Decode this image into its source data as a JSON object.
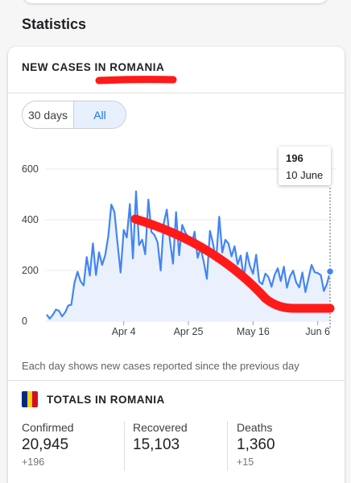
{
  "section_title": "Statistics",
  "card": {
    "title": "NEW CASES IN ROMANIA",
    "range_options": [
      "30 days",
      "All"
    ],
    "selected_range": "All",
    "footnote": "Each day shows new cases reported since the previous day"
  },
  "tooltip": {
    "value": "196",
    "date": "10 June"
  },
  "chart_data": {
    "type": "area",
    "ylim": [
      0,
      600
    ],
    "y_ticks": [
      0,
      200,
      400,
      600
    ],
    "x_tick_labels": [
      "Apr 4",
      "Apr 25",
      "May 16",
      "Jun 6"
    ],
    "x_tick_indices": [
      25,
      46,
      67,
      88
    ],
    "values": [
      26,
      10,
      25,
      46,
      41,
      19,
      35,
      62,
      65,
      150,
      195,
      157,
      141,
      253,
      180,
      307,
      182,
      272,
      222,
      261,
      335,
      460,
      430,
      307,
      192,
      360,
      330,
      462,
      248,
      512,
      300,
      322,
      264,
      480,
      352,
      340,
      312,
      200,
      386,
      440,
      320,
      227,
      430,
      260,
      380,
      350,
      330,
      300,
      353,
      250,
      290,
      234,
      167,
      356,
      306,
      237,
      412,
      271,
      321,
      307,
      256,
      296,
      224,
      259,
      169,
      270,
      217,
      187,
      262,
      156,
      146,
      188,
      174,
      136,
      182,
      209,
      158,
      215,
      132,
      177,
      199,
      153,
      133,
      192,
      115,
      169,
      222,
      193,
      190,
      182,
      119,
      148,
      196
    ],
    "highlight_index": 92,
    "colors": {
      "line": "#4285f4",
      "fill": "#eaf1fd",
      "grid": "#e8eaed",
      "annotation": "#ff1a1a"
    }
  },
  "totals": {
    "title": "TOTALS IN ROMANIA",
    "flag_colors": [
      "#002b7f",
      "#fcd116",
      "#ce1126"
    ],
    "confirmed": {
      "label": "Confirmed",
      "value": "20,945",
      "delta": "+196"
    },
    "recovered": {
      "label": "Recovered",
      "value": "15,103"
    },
    "deaths": {
      "label": "Deaths",
      "value": "1,360",
      "delta": "+15"
    }
  }
}
